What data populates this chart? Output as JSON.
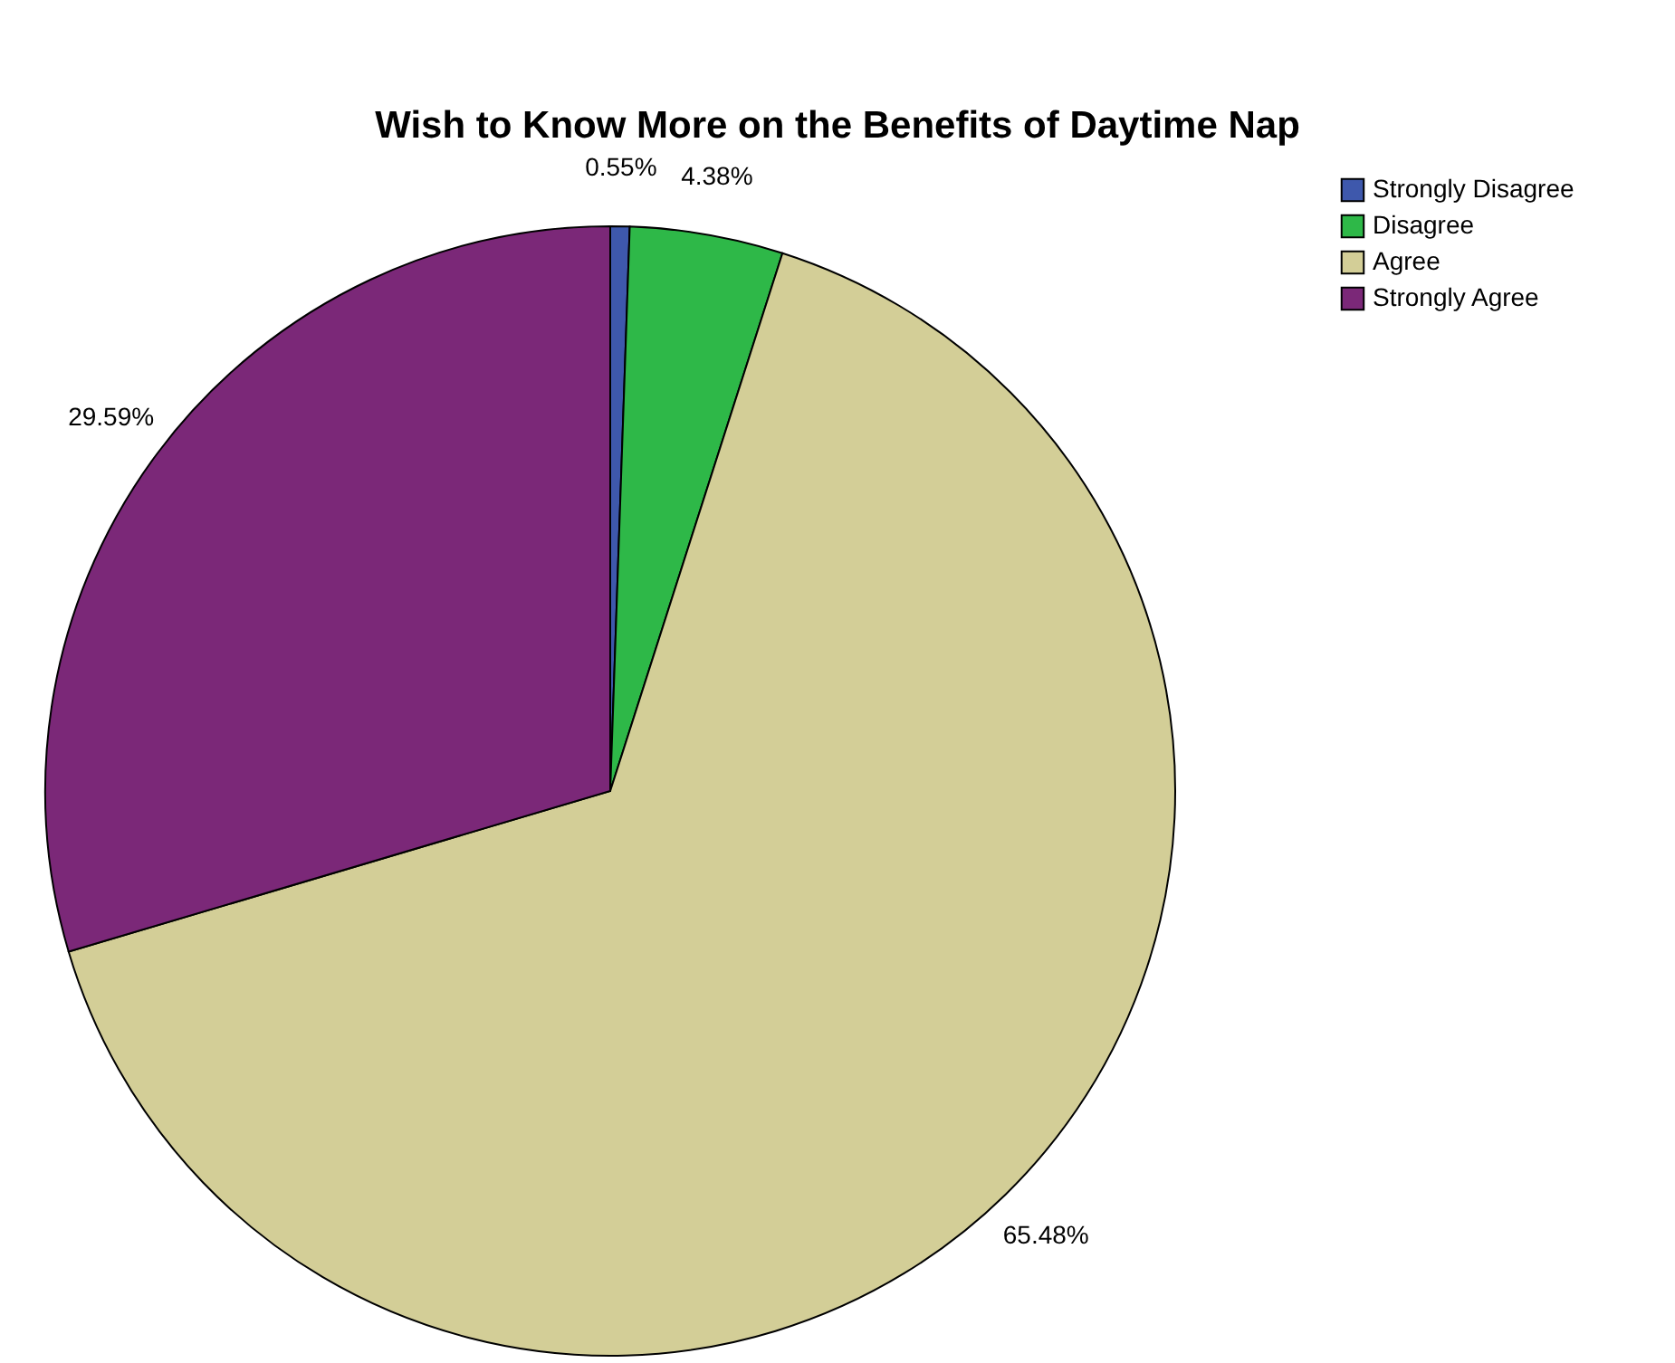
{
  "chart_data": {
    "type": "pie",
    "title": "Wish to Know More on the Benefits of Daytime Nap",
    "categories": [
      "Strongly Disagree",
      "Disagree",
      "Agree",
      "Strongly Agree"
    ],
    "values": [
      0.55,
      4.38,
      65.48,
      29.59
    ],
    "colors": [
      "#3e58ac",
      "#2eb848",
      "#d3ce97",
      "#7b2878"
    ],
    "value_labels": [
      "0.55%",
      "4.38%",
      "65.48%",
      "29.59%"
    ],
    "legend": "top right"
  }
}
